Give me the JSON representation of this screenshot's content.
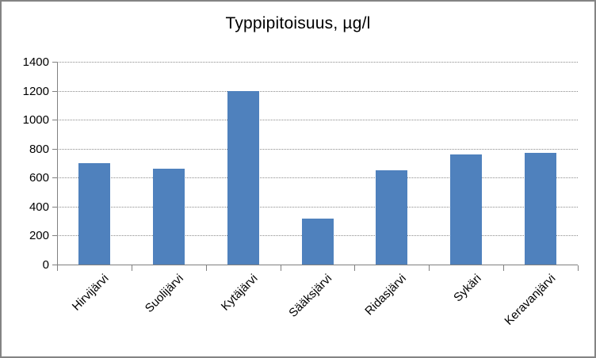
{
  "window": {
    "background_color": "#FFFFFF",
    "border_color": "#848484"
  },
  "chart_data": {
    "type": "bar",
    "title": "Typpipitoisuus, µg/l",
    "categories": [
      "Hirvijärvi",
      "Suolijärvi",
      "Kytäjärvi",
      "Sääksjärvi",
      "Ridasjärvi",
      "Sykäri",
      "Keravanjärvi"
    ],
    "values": [
      700,
      660,
      1200,
      315,
      650,
      760,
      770
    ],
    "xlabel": "",
    "ylabel": "",
    "ylim": [
      0,
      1400
    ],
    "ytick_step": 200,
    "ytick_labels": [
      "0",
      "200",
      "400",
      "600",
      "800",
      "1000",
      "1200",
      "1400"
    ],
    "grid": true,
    "legend_position": "none",
    "bar_color": "#4F81BD",
    "gridline_color": "#8C8C8C",
    "axis_color": "#808080",
    "text_color": "#000000"
  }
}
